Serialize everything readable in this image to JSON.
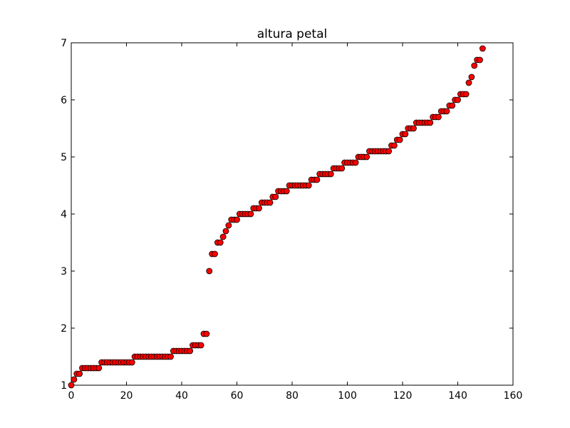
{
  "chart_data": {
    "type": "scatter",
    "title": "altura petal",
    "xlabel": "",
    "ylabel": "",
    "xlim": [
      0,
      160
    ],
    "ylim": [
      1,
      7
    ],
    "x_ticks": [
      0,
      20,
      40,
      60,
      80,
      100,
      120,
      140,
      160
    ],
    "y_ticks": [
      1,
      2,
      3,
      4,
      5,
      6,
      7
    ],
    "x_tick_labels": [
      "0",
      "20",
      "40",
      "60",
      "80",
      "100",
      "120",
      "140",
      "160"
    ],
    "y_tick_labels": [
      "1",
      "2",
      "3",
      "4",
      "5",
      "6",
      "7"
    ],
    "grid": false,
    "marker_color": "#ff0000",
    "marker_edge_color": "#000000",
    "series": [
      {
        "x": [
          0,
          1,
          2,
          3,
          4,
          5,
          6,
          7,
          8,
          9,
          10,
          11,
          12,
          13,
          14,
          15,
          16,
          17,
          18,
          19,
          20,
          21,
          22,
          23,
          24,
          25,
          26,
          27,
          28,
          29,
          30,
          31,
          32,
          33,
          34,
          35,
          36,
          37,
          38,
          39,
          40,
          41,
          42,
          43,
          44,
          45,
          46,
          47,
          48,
          49,
          50,
          51,
          52,
          53,
          54,
          55,
          56,
          57,
          58,
          59,
          60,
          61,
          62,
          63,
          64,
          65,
          66,
          67,
          68,
          69,
          70,
          71,
          72,
          73,
          74,
          75,
          76,
          77,
          78,
          79,
          80,
          81,
          82,
          83,
          84,
          85,
          86,
          87,
          88,
          89,
          90,
          91,
          92,
          93,
          94,
          95,
          96,
          97,
          98,
          99,
          100,
          101,
          102,
          103,
          104,
          105,
          106,
          107,
          108,
          109,
          110,
          111,
          112,
          113,
          114,
          115,
          116,
          117,
          118,
          119,
          120,
          121,
          122,
          123,
          124,
          125,
          126,
          127,
          128,
          129,
          130,
          131,
          132,
          133,
          134,
          135,
          136,
          137,
          138,
          139,
          140,
          141,
          142,
          143,
          144,
          145,
          146,
          147,
          148,
          149
        ],
        "values": [
          1.0,
          1.1,
          1.2,
          1.2,
          1.3,
          1.3,
          1.3,
          1.3,
          1.3,
          1.3,
          1.3,
          1.4,
          1.4,
          1.4,
          1.4,
          1.4,
          1.4,
          1.4,
          1.4,
          1.4,
          1.4,
          1.4,
          1.4,
          1.5,
          1.5,
          1.5,
          1.5,
          1.5,
          1.5,
          1.5,
          1.5,
          1.5,
          1.5,
          1.5,
          1.5,
          1.5,
          1.5,
          1.6,
          1.6,
          1.6,
          1.6,
          1.6,
          1.6,
          1.6,
          1.7,
          1.7,
          1.7,
          1.7,
          1.9,
          1.9,
          3.0,
          3.3,
          3.3,
          3.5,
          3.5,
          3.6,
          3.7,
          3.8,
          3.9,
          3.9,
          3.9,
          4.0,
          4.0,
          4.0,
          4.0,
          4.0,
          4.1,
          4.1,
          4.1,
          4.2,
          4.2,
          4.2,
          4.2,
          4.3,
          4.3,
          4.4,
          4.4,
          4.4,
          4.4,
          4.5,
          4.5,
          4.5,
          4.5,
          4.5,
          4.5,
          4.5,
          4.5,
          4.6,
          4.6,
          4.6,
          4.7,
          4.7,
          4.7,
          4.7,
          4.7,
          4.8,
          4.8,
          4.8,
          4.8,
          4.9,
          4.9,
          4.9,
          4.9,
          4.9,
          5.0,
          5.0,
          5.0,
          5.0,
          5.1,
          5.1,
          5.1,
          5.1,
          5.1,
          5.1,
          5.1,
          5.1,
          5.2,
          5.2,
          5.3,
          5.3,
          5.4,
          5.4,
          5.5,
          5.5,
          5.5,
          5.6,
          5.6,
          5.6,
          5.6,
          5.6,
          5.6,
          5.7,
          5.7,
          5.7,
          5.8,
          5.8,
          5.8,
          5.9,
          5.9,
          6.0,
          6.0,
          6.1,
          6.1,
          6.1,
          6.3,
          6.4,
          6.6,
          6.7,
          6.7,
          6.9
        ]
      }
    ]
  }
}
